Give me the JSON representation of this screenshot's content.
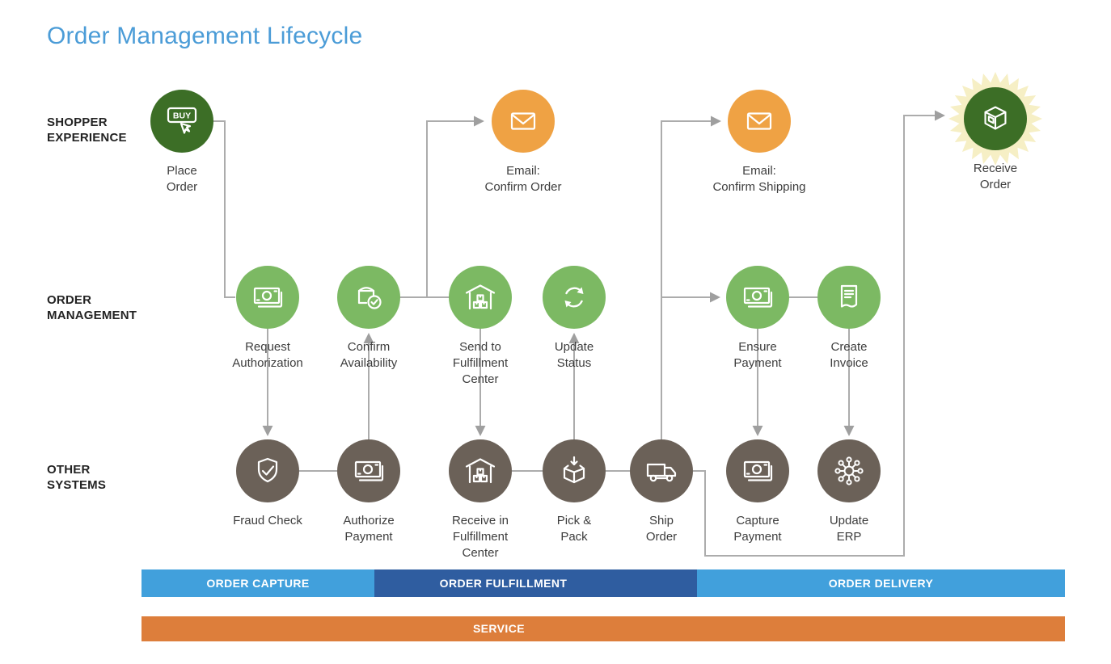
{
  "title": "Order Management Lifecycle",
  "lanes": {
    "shopper": "SHOPPER\nEXPERIENCE",
    "order_management": "ORDER\nMANAGEMENT",
    "other_systems": "OTHER\nSYSTEMS"
  },
  "nodes": {
    "place_order": {
      "label": "Place\nOrder",
      "icon": "buy-button-icon",
      "color": "dark-green"
    },
    "email_confirm_order": {
      "label": "Email:\nConfirm Order",
      "icon": "envelope-icon",
      "color": "orange"
    },
    "email_confirm_shipping": {
      "label": "Email:\nConfirm Shipping",
      "icon": "envelope-icon",
      "color": "orange"
    },
    "receive_order": {
      "label": "Receive\nOrder",
      "icon": "package-box-icon",
      "color": "dark-green"
    },
    "request_authorization": {
      "label": "Request\nAuthorization",
      "icon": "cash-icon",
      "color": "green"
    },
    "confirm_availability": {
      "label": "Confirm\nAvailability",
      "icon": "bag-check-icon",
      "color": "green"
    },
    "send_to_fulfillment_center": {
      "label": "Send to\nFulfillment\nCenter",
      "icon": "warehouse-icon",
      "color": "green"
    },
    "update_status": {
      "label": "Update\nStatus",
      "icon": "refresh-icon",
      "color": "green"
    },
    "ensure_payment": {
      "label": "Ensure\nPayment",
      "icon": "cash-icon",
      "color": "green"
    },
    "create_invoice": {
      "label": "Create\nInvoice",
      "icon": "invoice-icon",
      "color": "green"
    },
    "fraud_check": {
      "label": "Fraud Check",
      "icon": "shield-check-icon",
      "color": "gray"
    },
    "authorize_payment": {
      "label": "Authorize\nPayment",
      "icon": "cash-icon",
      "color": "gray"
    },
    "receive_in_fulfillment_center": {
      "label": "Receive in\nFulfillment\nCenter",
      "icon": "warehouse-icon",
      "color": "gray"
    },
    "pick_and_pack": {
      "label": "Pick &\nPack",
      "icon": "pack-box-icon",
      "color": "gray"
    },
    "ship_order": {
      "label": "Ship\nOrder",
      "icon": "truck-icon",
      "color": "gray"
    },
    "capture_payment": {
      "label": "Capture\nPayment",
      "icon": "cash-icon",
      "color": "gray"
    },
    "update_erp": {
      "label": "Update\nERP",
      "icon": "hub-icon",
      "color": "gray"
    }
  },
  "edges": [
    {
      "from": "place_order",
      "to": "request_authorization"
    },
    {
      "from": "request_authorization",
      "to": "fraud_check"
    },
    {
      "from": "fraud_check",
      "to": "authorize_payment"
    },
    {
      "from": "authorize_payment",
      "to": "confirm_availability"
    },
    {
      "from": "confirm_availability",
      "to": "send_to_fulfillment_center"
    },
    {
      "from": "confirm_availability",
      "to": "email_confirm_order"
    },
    {
      "from": "send_to_fulfillment_center",
      "to": "receive_in_fulfillment_center"
    },
    {
      "from": "receive_in_fulfillment_center",
      "to": "pick_and_pack"
    },
    {
      "from": "pick_and_pack",
      "to": "update_status"
    },
    {
      "from": "pick_and_pack",
      "to": "ship_order"
    },
    {
      "from": "ship_order",
      "to": "email_confirm_shipping"
    },
    {
      "from": "ship_order",
      "to": "ensure_payment"
    },
    {
      "from": "ensure_payment",
      "to": "create_invoice"
    },
    {
      "from": "ensure_payment",
      "to": "capture_payment"
    },
    {
      "from": "create_invoice",
      "to": "update_erp"
    },
    {
      "from": "ship_order",
      "to": "receive_order"
    }
  ],
  "bars": {
    "order_capture": "ORDER CAPTURE",
    "order_fulfillment": "ORDER FULFILLMENT",
    "order_delivery": "ORDER DELIVERY",
    "service": "SERVICE"
  },
  "colors": {
    "title": "#4B9CD7",
    "dark_green_node": "#3C6E26",
    "green_node": "#7CB963",
    "orange_node": "#EFA244",
    "gray_node": "#6B6158",
    "starburst": "#F6EFC5",
    "connector": "#ACACAC",
    "bar_light_blue": "#41A0DC",
    "bar_dark_blue": "#2F5DA0",
    "bar_orange": "#DD7E3B"
  }
}
